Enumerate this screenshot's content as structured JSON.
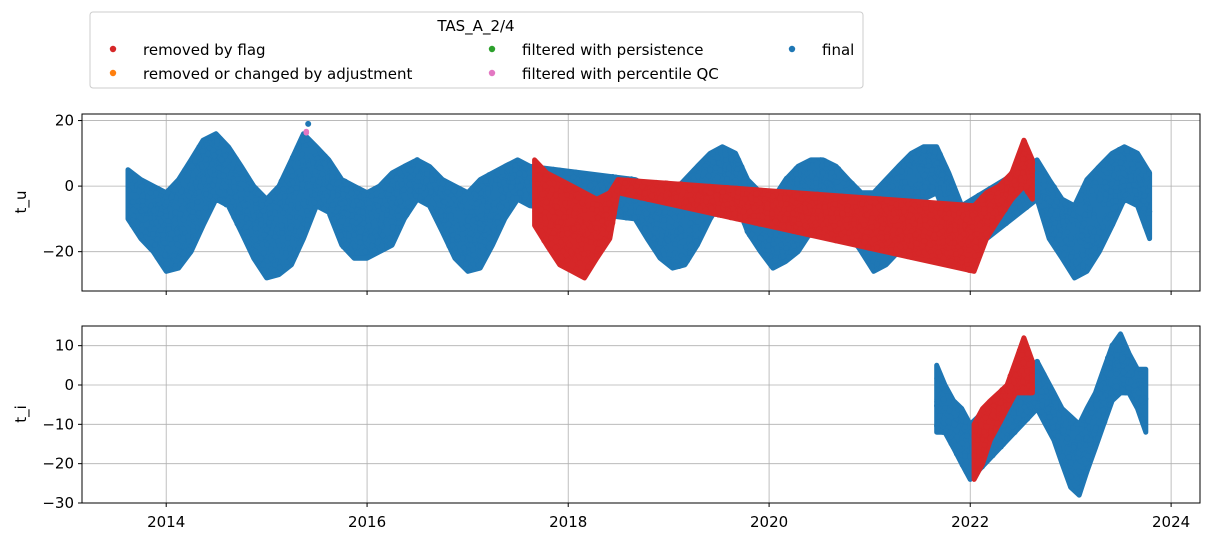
{
  "chart_data": {
    "type": "scatter",
    "legend": {
      "title": "TAS_A_2/4",
      "placement": "top-left",
      "entries": [
        {
          "label": "removed by flag",
          "color": "#d62728"
        },
        {
          "label": "removed or changed by adjustment",
          "color": "#ff7f0e"
        },
        {
          "label": "filtered with persistence",
          "color": "#2ca02c"
        },
        {
          "label": "filtered with percentile QC",
          "color": "#e377c2"
        },
        {
          "label": "final",
          "color": "#1f77b4"
        }
      ]
    },
    "x_axis": {
      "type": "date",
      "range": [
        "2013-03-01",
        "2024-04-15"
      ],
      "ticks": [
        "2014",
        "2016",
        "2018",
        "2020",
        "2022",
        "2024"
      ],
      "grid": true
    },
    "panels": [
      {
        "ylabel": "t_u",
        "ylim": [
          -32,
          22
        ],
        "yticks": [
          20,
          0,
          -20
        ],
        "ytick_labels": [
          "20",
          "0",
          "−20"
        ],
        "grid": true,
        "series": [
          {
            "name": "final",
            "color": "#1f77b4",
            "x": [
              "2013-08-15",
              "2013-10-01",
              "2013-11-15",
              "2014-01-01",
              "2014-02-15",
              "2014-04-01",
              "2014-05-15",
              "2014-07-01",
              "2014-08-15",
              "2014-10-01",
              "2014-11-15",
              "2015-01-01",
              "2015-02-15",
              "2015-04-01",
              "2015-05-15",
              "2015-07-01",
              "2015-08-15",
              "2015-10-01",
              "2015-11-15",
              "2016-01-01",
              "2016-02-15",
              "2016-04-01",
              "2016-05-15",
              "2016-07-01",
              "2016-08-15",
              "2016-10-01",
              "2016-11-15",
              "2017-01-01",
              "2017-02-15",
              "2017-04-01",
              "2017-05-15",
              "2017-07-01",
              "2017-08-15",
              "2018-09-01",
              "2018-10-15",
              "2018-12-01",
              "2019-01-15",
              "2019-03-01",
              "2019-04-15",
              "2019-06-01",
              "2019-07-15",
              "2019-09-01",
              "2019-10-15",
              "2019-12-01",
              "2020-01-15",
              "2020-03-01",
              "2020-04-15",
              "2020-06-01",
              "2020-07-15",
              "2020-09-01",
              "2020-10-15",
              "2020-12-01",
              "2021-01-15",
              "2021-03-01",
              "2021-04-15",
              "2021-06-01",
              "2021-07-15",
              "2021-09-01",
              "2021-10-15",
              "2021-12-01",
              "2022-09-01",
              "2022-10-15",
              "2022-12-01",
              "2023-01-15",
              "2023-03-01",
              "2023-04-15",
              "2023-06-01",
              "2023-07-15",
              "2023-09-01",
              "2023-10-15"
            ],
            "y_min": [
              -10,
              -16,
              -20,
              -26,
              -25,
              -20,
              -12,
              -4,
              -6,
              -14,
              -22,
              -28,
              -27,
              -24,
              -16,
              -6,
              -8,
              -18,
              -22,
              -22,
              -20,
              -18,
              -10,
              -4,
              -6,
              -14,
              -22,
              -26,
              -25,
              -18,
              -10,
              -4,
              -6,
              -10,
              -16,
              -22,
              -25,
              -24,
              -18,
              -10,
              -4,
              -4,
              -14,
              -20,
              -25,
              -23,
              -20,
              -14,
              -6,
              -4,
              -14,
              -20,
              -26,
              -24,
              -20,
              -12,
              -4,
              -2,
              -12,
              -22,
              -4,
              -16,
              -22,
              -28,
              -26,
              -20,
              -12,
              -4,
              -6,
              -16
            ],
            "y_max": [
              5,
              2,
              0,
              -2,
              2,
              8,
              14,
              16,
              12,
              6,
              0,
              -4,
              0,
              8,
              16,
              12,
              8,
              2,
              0,
              -2,
              0,
              4,
              6,
              8,
              6,
              2,
              0,
              -2,
              2,
              4,
              6,
              8,
              6,
              2,
              0,
              -4,
              -2,
              2,
              6,
              10,
              12,
              10,
              2,
              -2,
              -4,
              2,
              6,
              8,
              8,
              6,
              2,
              -2,
              -2,
              2,
              6,
              10,
              12,
              12,
              4,
              -6,
              8,
              2,
              -4,
              -6,
              2,
              6,
              10,
              12,
              10,
              4
            ],
            "note_peak": {
              "x": "2015-06-01",
              "y": 19
            }
          },
          {
            "name": "removed by flag",
            "color": "#d62728",
            "x": [
              "2017-09-01",
              "2017-10-15",
              "2017-12-01",
              "2018-01-15",
              "2018-03-01",
              "2018-04-15",
              "2018-06-01",
              "2018-07-01",
              "2022-01-15",
              "2022-03-01",
              "2022-04-15",
              "2022-06-01",
              "2022-07-15",
              "2022-08-15"
            ],
            "y_min": [
              -12,
              -18,
              -24,
              -26,
              -28,
              -22,
              -16,
              -2,
              -26,
              -16,
              -10,
              -4,
              0,
              -4
            ],
            "y_max": [
              8,
              4,
              2,
              0,
              -2,
              -4,
              -2,
              2,
              -6,
              -2,
              0,
              4,
              14,
              8
            ]
          },
          {
            "name": "filtered with percentile QC",
            "color": "#e377c2",
            "x": [
              "2015-05-25"
            ],
            "y_min": [
              16
            ],
            "y_max": [
              17
            ]
          }
        ]
      },
      {
        "ylabel": "t_i",
        "ylim": [
          -30,
          15
        ],
        "yticks": [
          10,
          0,
          -10,
          -20,
          -30
        ],
        "ytick_labels": [
          "10",
          "0",
          "−10",
          "−20",
          "−30"
        ],
        "grid": true,
        "series": [
          {
            "name": "final",
            "color": "#1f77b4",
            "x": [
              "2021-09-01",
              "2021-10-01",
              "2021-11-01",
              "2021-12-01",
              "2022-01-01",
              "2022-09-01",
              "2022-10-01",
              "2022-11-01",
              "2022-12-01",
              "2023-01-01",
              "2023-02-01",
              "2023-03-01",
              "2023-04-01",
              "2023-05-01",
              "2023-06-01",
              "2023-07-01",
              "2023-08-01",
              "2023-09-01",
              "2023-10-01"
            ],
            "y_min": [
              -12,
              -12,
              -16,
              -20,
              -24,
              -6,
              -10,
              -14,
              -20,
              -26,
              -28,
              -22,
              -16,
              -10,
              -4,
              -2,
              -2,
              -6,
              -12
            ],
            "y_max": [
              5,
              0,
              -4,
              -6,
              -10,
              6,
              2,
              -2,
              -6,
              -8,
              -10,
              -6,
              -2,
              4,
              10,
              13,
              8,
              4,
              4
            ]
          },
          {
            "name": "removed by flag",
            "color": "#d62728",
            "x": [
              "2022-01-15",
              "2022-02-15",
              "2022-03-15",
              "2022-04-15",
              "2022-05-15",
              "2022-06-15",
              "2022-07-15",
              "2022-08-15"
            ],
            "y_min": [
              -24,
              -20,
              -14,
              -10,
              -6,
              -2,
              -2,
              -2
            ],
            "y_max": [
              -10,
              -6,
              -4,
              -2,
              0,
              6,
              12,
              6
            ]
          }
        ]
      }
    ]
  }
}
